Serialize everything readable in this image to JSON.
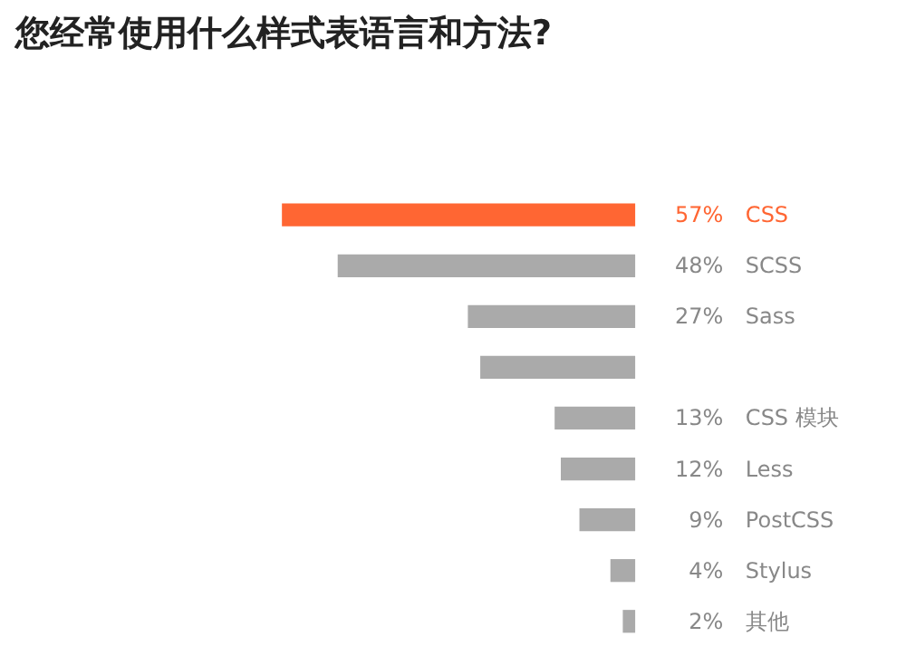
{
  "chart_data": {
    "type": "bar",
    "orientation": "horizontal",
    "title": "您经常使用什么样式表语言和方法?",
    "categories": [
      "CSS",
      "SCSS",
      "Sass",
      null,
      "CSS 模块",
      "Less",
      "PostCSS",
      "Stylus",
      "其他"
    ],
    "values": [
      57,
      48,
      27,
      25,
      13,
      12,
      9,
      4,
      2
    ],
    "value_labels": [
      "57%",
      "48%",
      "27%",
      null,
      "13%",
      "12%",
      "9%",
      "4%",
      "2%"
    ],
    "colors": [
      "#ff6633",
      "#aaaaaa",
      "#aaaaaa",
      "#aaaaaa",
      "#aaaaaa",
      "#aaaaaa",
      "#aaaaaa",
      "#aaaaaa",
      "#aaaaaa"
    ]
  }
}
